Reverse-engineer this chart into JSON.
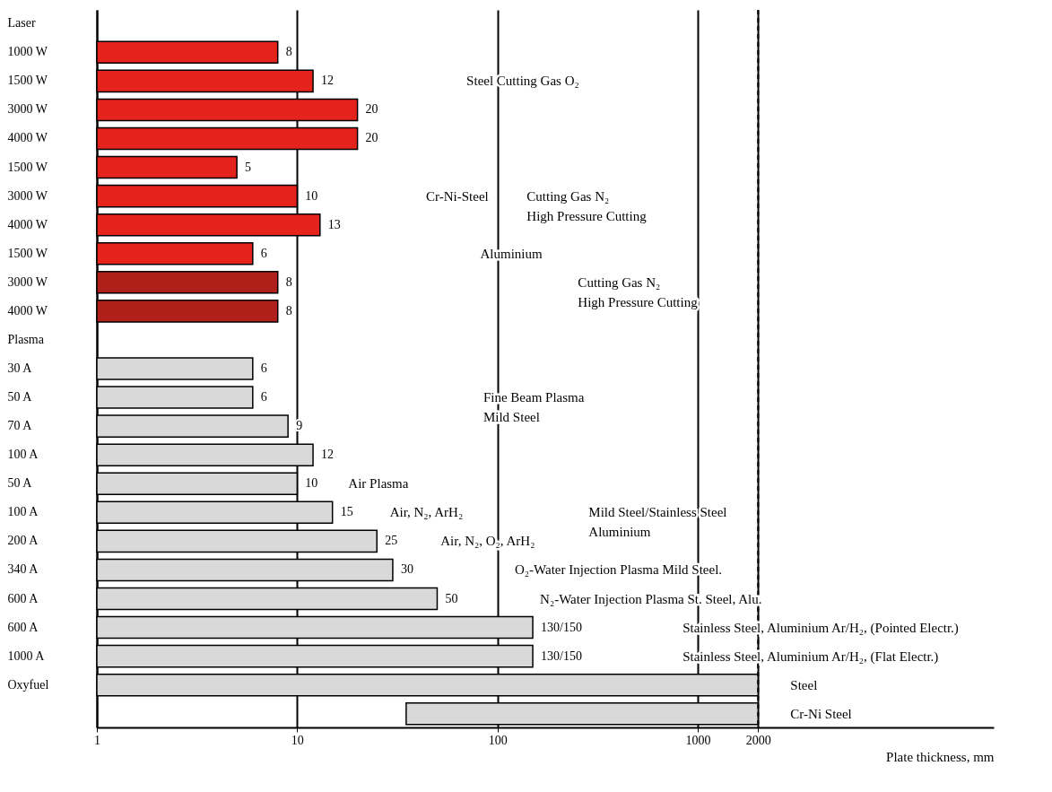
{
  "chart_data": {
    "type": "bar",
    "orientation": "horizontal",
    "log": "x",
    "grid": "x",
    "xlabel": "Plate thickness, mm",
    "xlim": [
      1,
      30000
    ],
    "xticks": [
      1,
      10,
      100,
      1000,
      2000
    ],
    "categories": [
      "Laser",
      "1000 W",
      "1500 W",
      "3000 W",
      "4000 W",
      "1500 W",
      "3000 W",
      "4000 W",
      "1500 W",
      "3000 W",
      "4000 W",
      "Plasma",
      "30 A",
      "50 A",
      "70 A",
      "100 A",
      "50 A",
      "100 A",
      "200 A",
      "340 A",
      "600 A",
      "600 A",
      "1000 A",
      "Oxyfuel",
      null
    ],
    "values": [
      null,
      8,
      12,
      20,
      20,
      5,
      10,
      13,
      6,
      8,
      8,
      null,
      6,
      6,
      9,
      12,
      10,
      15,
      25,
      30,
      50,
      150,
      150,
      2000,
      1965
    ],
    "base": [
      null,
      null,
      null,
      null,
      null,
      null,
      null,
      null,
      null,
      null,
      null,
      null,
      null,
      null,
      null,
      null,
      null,
      null,
      null,
      null,
      null,
      null,
      null,
      null,
      35
    ],
    "value_labels": [
      null,
      "8",
      "12",
      "20",
      "20",
      "5",
      "10",
      "13",
      "6",
      "8",
      "8",
      null,
      "6",
      "6",
      "9",
      "12",
      "10",
      "15",
      "25",
      "30",
      "50",
      "130/150",
      "130/150",
      null,
      null
    ],
    "colors": [
      null,
      "#e3231c",
      "#e3231c",
      "#e3231c",
      "#e3231c",
      "#e3231c",
      "#e3231c",
      "#e3231c",
      "#e3231c",
      "#b0201a",
      "#b0201a",
      null,
      "#d9d9d9",
      "#d9d9d9",
      "#d9d9d9",
      "#d9d9d9",
      "#d9d9d9",
      "#d9d9d9",
      "#d9d9d9",
      "#d9d9d9",
      "#d9d9d9",
      "#d9d9d9",
      "#d9d9d9",
      "#d9d9d9",
      "#d9d9d9"
    ],
    "ref_lines": [
      {
        "axis": "x",
        "value": 2000,
        "line_style": "dashed"
      }
    ],
    "annotations": [
      "Steel Cutting Gas O₂",
      "Cr-Ni-Steel",
      "Cutting Gas N₂\nHigh Pressure Cutting",
      "Aluminium",
      "Cutting Gas N₂\nHigh Pressure Cutting",
      "Fine Beam Plasma\nMild Steel",
      "Air Plasma",
      "Air, N₂, ArH₂",
      "Air, N₂, O₂, ArH₂",
      "Mild Steel/Stainless Steel\nAluminium",
      "O₂-Water Injection Plasma Mild Steel.",
      "N₂-Water Injection Plasma St. Steel, Alu.",
      "Stainless Steel, Aluminium Ar/H₂, (Pointed Electr.)",
      "Stainless Steel, Aluminium Ar/H₂, (Flat Electr.)",
      "Steel",
      "Cr-Ni Steel"
    ]
  }
}
